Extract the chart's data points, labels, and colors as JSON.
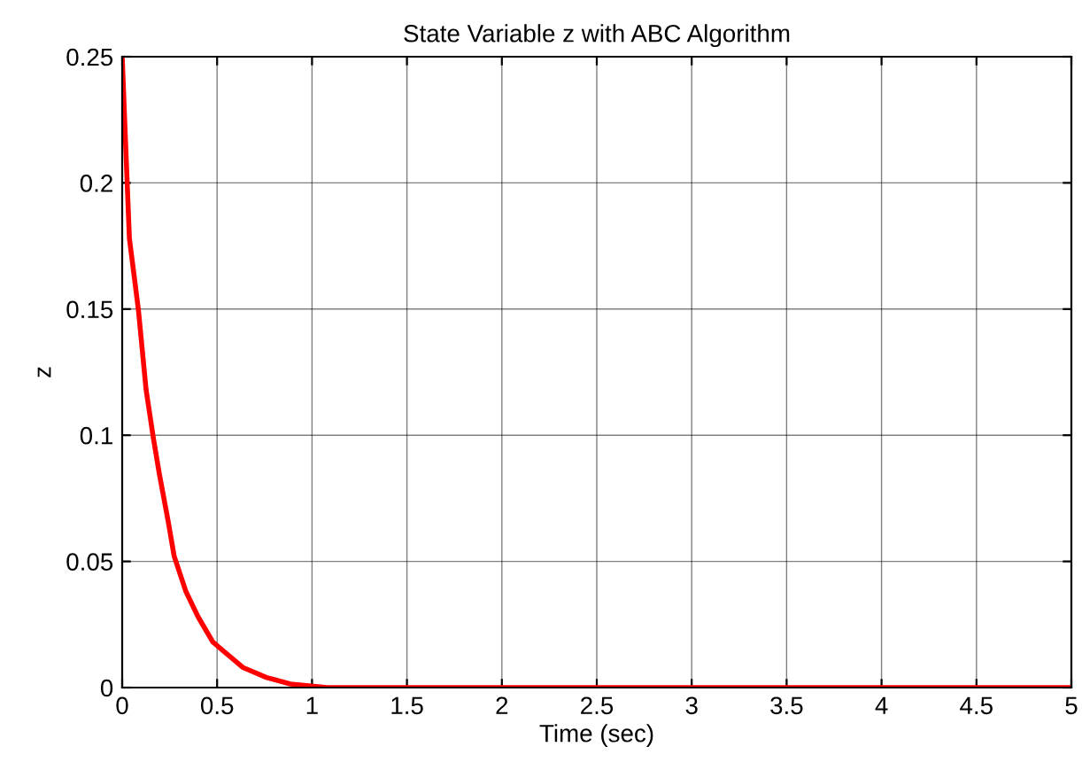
{
  "chart_data": {
    "type": "line",
    "title": "State Variable z with ABC Algorithm",
    "xlabel": "Time (sec)",
    "ylabel": "z",
    "x": [
      0,
      0.013,
      0.038,
      0.085,
      0.126,
      0.164,
      0.195,
      0.242,
      0.274,
      0.336,
      0.4,
      0.478,
      0.635,
      0.76,
      0.887,
      1.08,
      2,
      3,
      4,
      5
    ],
    "series": [
      {
        "color": "#ff0000",
        "values": [
          0.25,
          0.225,
          0.178,
          0.15,
          0.118,
          0.099,
          0.085,
          0.066,
          0.052,
          0.038,
          0.028,
          0.018,
          0.008,
          0.004,
          0.0014,
          0,
          0,
          0,
          0,
          0
        ]
      }
    ],
    "xlim": [
      0,
      5
    ],
    "ylim": [
      0,
      0.25
    ],
    "xticks": [
      0,
      0.5,
      1,
      1.5,
      2,
      2.5,
      3,
      3.5,
      4,
      4.5,
      5
    ],
    "yticks": [
      0,
      0.05,
      0.1,
      0.15,
      0.2,
      0.25
    ],
    "grid": true,
    "line_style": "solid",
    "marker": "none"
  }
}
